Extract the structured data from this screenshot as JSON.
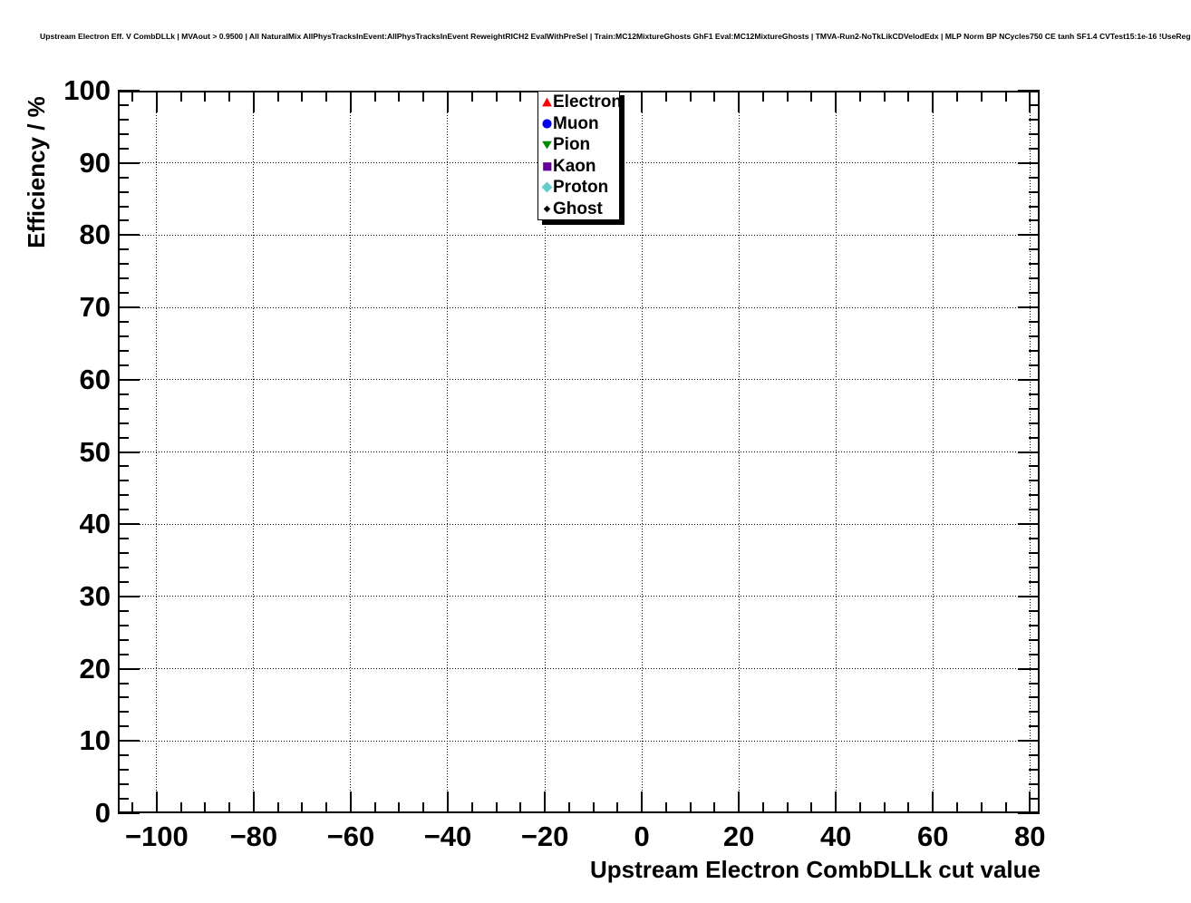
{
  "header": {
    "title": "Upstream Electron Eff. V CombDLLk | MVAout > 0.9500 | All NaturalMix AllPhysTracksInEvent:AllPhysTracksInEvent ReweightRICH2 EvalWithPreSel | Train:MC12MixtureGhosts GhF1 Eval:MC12MixtureGhosts | TMVA-Run2-NoTkLikCDVelodEdx | MLP Norm BP NCycles750 CE tanh SF1.4 CVTest15:1e-16 !UseReg"
  },
  "axes": {
    "x": {
      "title": "Upstream Electron CombDLLk cut value",
      "min": -108,
      "max": 82,
      "tick_values": [
        -100,
        -80,
        -60,
        -40,
        -20,
        0,
        20,
        40,
        60,
        80
      ],
      "tick_labels": [
        "−100",
        "−80",
        "−60",
        "−40",
        "−20",
        "0",
        "20",
        "40",
        "60",
        "80"
      ],
      "minor_step": 5
    },
    "y": {
      "title": "Efficiency / %",
      "min": 0,
      "max": 100,
      "tick_values": [
        0,
        10,
        20,
        30,
        40,
        50,
        60,
        70,
        80,
        90,
        100
      ],
      "tick_labels": [
        "0",
        "10",
        "20",
        "30",
        "40",
        "50",
        "60",
        "70",
        "80",
        "90",
        "100"
      ],
      "minor_step": 2
    }
  },
  "legend": {
    "items": [
      {
        "label": "Electron",
        "marker": "triangle-up",
        "color": "#ff0000"
      },
      {
        "label": "Muon",
        "marker": "circle",
        "color": "#0000ee"
      },
      {
        "label": "Pion",
        "marker": "triangle-down",
        "color": "#008800"
      },
      {
        "label": "Kaon",
        "marker": "square",
        "color": "#660099"
      },
      {
        "label": "Proton",
        "marker": "diamond",
        "color": "#66cccc"
      },
      {
        "label": "Ghost",
        "marker": "diamond-small",
        "color": "#000000"
      }
    ]
  },
  "chart_data": {
    "type": "scatter",
    "title": "Upstream Electron Eff. V CombDLLk | MVAout > 0.9500 | All NaturalMix AllPhysTracksInEvent:AllPhysTracksInEvent ReweightRICH2 EvalWithPreSel | Train:MC12MixtureGhosts GhF1 Eval:MC12MixtureGhosts | TMVA-Run2-NoTkLikCDVelodEdx | MLP Norm BP NCycles750 CE tanh SF1.4 CVTest15:1e-16 !UseReg",
    "xlabel": "Upstream Electron CombDLLk cut value",
    "ylabel": "Efficiency / %",
    "xlim": [
      -108,
      82
    ],
    "ylim": [
      0,
      100
    ],
    "x_ticks": [
      -100,
      -80,
      -60,
      -40,
      -20,
      0,
      20,
      40,
      60,
      80
    ],
    "y_ticks": [
      0,
      10,
      20,
      30,
      40,
      50,
      60,
      70,
      80,
      90,
      100
    ],
    "grid": true,
    "grid_style": "dotted",
    "legend_position": "top-center",
    "series": [
      {
        "name": "Electron",
        "marker": "triangle-up",
        "color": "#ff0000",
        "x": [],
        "y": []
      },
      {
        "name": "Muon",
        "marker": "circle",
        "color": "#0000ee",
        "x": [],
        "y": []
      },
      {
        "name": "Pion",
        "marker": "triangle-down",
        "color": "#008800",
        "x": [],
        "y": []
      },
      {
        "name": "Kaon",
        "marker": "square",
        "color": "#660099",
        "x": [],
        "y": []
      },
      {
        "name": "Proton",
        "marker": "diamond",
        "color": "#66cccc",
        "x": [],
        "y": []
      },
      {
        "name": "Ghost",
        "marker": "diamond-small",
        "color": "#000000",
        "x": [],
        "y": []
      }
    ]
  }
}
